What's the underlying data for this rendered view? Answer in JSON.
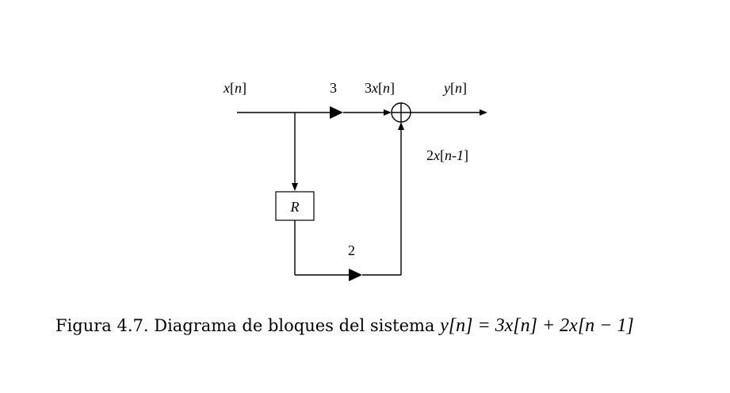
{
  "diagram": {
    "input_label": {
      "var": "x",
      "index": "n"
    },
    "forward_gain": "3",
    "scaled_input_label": {
      "coef": "3",
      "var": "x",
      "index": "n"
    },
    "output_label": {
      "var": "y",
      "index": "n"
    },
    "delayed_term_label": {
      "coef": "2",
      "var": "x",
      "index": "n-1"
    },
    "delay_block_label": "R",
    "feedback_gain": "2"
  },
  "caption": {
    "text": "Figura 4.7. Diagrama de bloques del sistema ",
    "equation": "y[n] = 3x[n] + 2x[n − 1]"
  }
}
